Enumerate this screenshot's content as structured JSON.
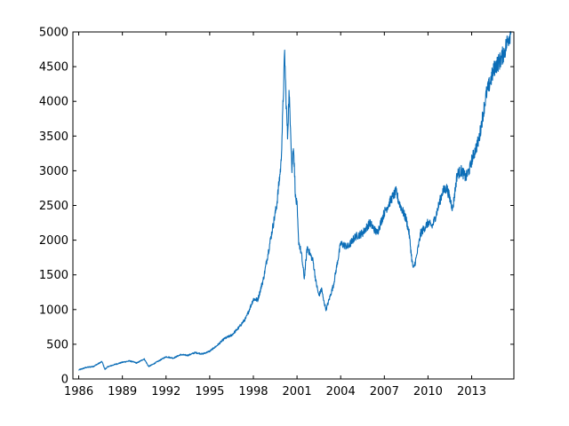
{
  "chart_data": {
    "type": "line",
    "title": "",
    "xlabel": "",
    "ylabel": "",
    "grid": false,
    "xlim": [
      1985.6,
      2015.9
    ],
    "ylim": [
      0,
      5000
    ],
    "x_ticks": [
      1986,
      1989,
      1992,
      1995,
      1998,
      2001,
      2004,
      2007,
      2010,
      2013
    ],
    "x_tick_labels": [
      "1986",
      "1989",
      "1992",
      "1995",
      "1998",
      "2001",
      "2004",
      "2007",
      "2010",
      "2013"
    ],
    "y_ticks": [
      0,
      500,
      1000,
      1500,
      2000,
      2500,
      3000,
      3500,
      4000,
      4500,
      5000
    ],
    "y_tick_labels": [
      "0",
      "500",
      "1000",
      "1500",
      "2000",
      "2500",
      "3000",
      "3500",
      "4000",
      "4500",
      "5000"
    ],
    "series": [
      {
        "color": "#0b6db7",
        "x": [
          1986.0,
          1986.5,
          1987.0,
          1987.6,
          1987.8,
          1988.0,
          1988.5,
          1989.0,
          1989.5,
          1990.0,
          1990.5,
          1990.8,
          1991.0,
          1991.5,
          1992.0,
          1992.5,
          1993.0,
          1993.5,
          1994.0,
          1994.5,
          1995.0,
          1995.5,
          1996.0,
          1996.5,
          1997.0,
          1997.5,
          1998.0,
          1998.3,
          1998.7,
          1999.0,
          1999.3,
          1999.6,
          1999.9,
          2000.0,
          2000.15,
          2000.25,
          2000.35,
          2000.45,
          2000.55,
          2000.65,
          2000.75,
          2000.9,
          2001.0,
          2001.1,
          2001.3,
          2001.5,
          2001.7,
          2001.9,
          2002.1,
          2002.3,
          2002.5,
          2002.7,
          2002.8,
          2003.0,
          2003.5,
          2004.0,
          2004.5,
          2005.0,
          2005.5,
          2006.0,
          2006.5,
          2007.0,
          2007.5,
          2007.8,
          2008.0,
          2008.3,
          2008.5,
          2008.7,
          2008.9,
          2009.0,
          2009.2,
          2009.5,
          2010.0,
          2010.3,
          2010.6,
          2011.0,
          2011.3,
          2011.7,
          2012.0,
          2012.3,
          2012.6,
          2012.9,
          2013.0,
          2013.5,
          2014.0,
          2014.3,
          2014.6,
          2015.0,
          2015.3,
          2015.5,
          2015.7
        ],
        "y": [
          130,
          165,
          180,
          250,
          140,
          175,
          210,
          240,
          260,
          230,
          290,
          180,
          200,
          260,
          320,
          300,
          350,
          340,
          380,
          360,
          400,
          480,
          580,
          630,
          740,
          880,
          1150,
          1140,
          1450,
          1800,
          2150,
          2500,
          3100,
          3700,
          4700,
          4000,
          3500,
          4100,
          3700,
          3000,
          3400,
          2600,
          2500,
          2000,
          1800,
          1450,
          1900,
          1800,
          1700,
          1400,
          1200,
          1300,
          1150,
          1000,
          1350,
          1950,
          1900,
          2050,
          2100,
          2250,
          2100,
          2400,
          2600,
          2700,
          2550,
          2400,
          2300,
          2100,
          1700,
          1580,
          1750,
          2100,
          2250,
          2200,
          2400,
          2700,
          2750,
          2450,
          2950,
          3000,
          2900,
          3050,
          3150,
          3450,
          4100,
          4300,
          4500,
          4600,
          4750,
          4900,
          5000
        ]
      }
    ]
  }
}
